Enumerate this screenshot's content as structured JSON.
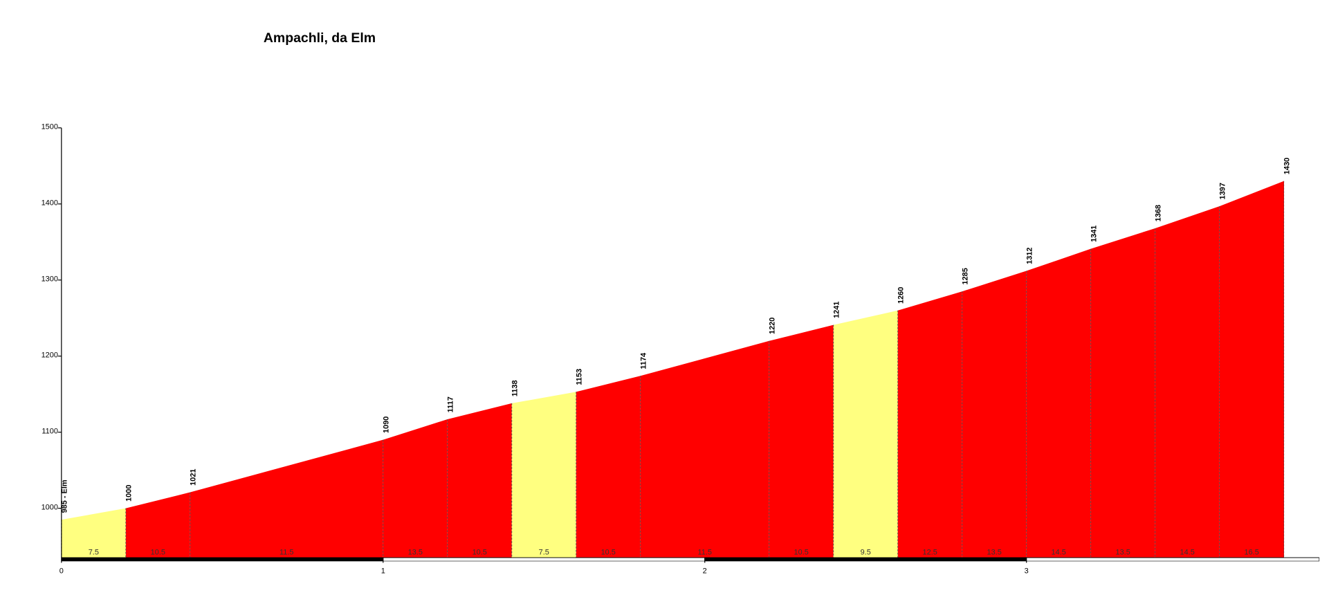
{
  "chart_data": {
    "type": "profile",
    "title": "Ampachli, da Elm",
    "x": [
      0,
      0.2,
      0.4,
      1.0,
      1.2,
      1.4,
      1.6,
      1.8,
      2.2,
      2.4,
      2.6,
      2.8,
      3.0,
      3.2,
      3.4,
      3.6,
      3.8
    ],
    "values": [
      985,
      1000,
      1021,
      1090,
      1117,
      1138,
      1153,
      1174,
      1220,
      1241,
      1260,
      1285,
      1312,
      1341,
      1368,
      1397,
      1430
    ],
    "value_labels": [
      "985 - Elm",
      "1000",
      "1021",
      "1090",
      "1117",
      "1138",
      "1153",
      "1174",
      "1220",
      "1241",
      "1260",
      "1285",
      "1312",
      "1341",
      "1368",
      "1397",
      "1430"
    ],
    "gradients": [
      7.5,
      10.5,
      11.5,
      13.5,
      10.5,
      7.5,
      10.5,
      11.5,
      10.5,
      9.5,
      12.5,
      13.5,
      14.5,
      13.5,
      14.5,
      16.5
    ],
    "gradient_colors": [
      "#ffff80",
      "#ff0000",
      "#ff0000",
      "#ff0000",
      "#ff0000",
      "#ffff80",
      "#ff0000",
      "#ff0000",
      "#ff0000",
      "#ffff80",
      "#ff0000",
      "#ff0000",
      "#ff0000",
      "#ff0000",
      "#ff0000",
      "#ff0000"
    ],
    "xlim": [
      0,
      3.91
    ],
    "xticks": [
      0,
      1,
      2,
      3
    ],
    "ylim": [
      935,
      1500
    ],
    "yticks": [
      1000,
      1100,
      1200,
      1300,
      1400,
      1500
    ]
  }
}
